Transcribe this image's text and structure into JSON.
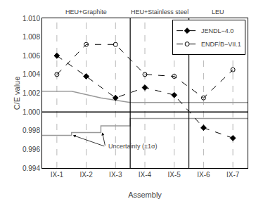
{
  "chart_data": {
    "type": "line",
    "xlabel": "Assembly",
    "ylabel": "C/E value",
    "xlim": [
      0.5,
      7.5
    ],
    "xticks": [
      {
        "value": 1,
        "label": "IX-1"
      },
      {
        "value": 2,
        "label": "IX-2"
      },
      {
        "value": 3,
        "label": "IX-3"
      },
      {
        "value": 4,
        "label": "IX-4"
      },
      {
        "value": 5,
        "label": "IX-5"
      },
      {
        "value": 6,
        "label": "IX-6"
      },
      {
        "value": 7,
        "label": "IX-7"
      }
    ],
    "ylim": [
      0.994,
      1.01
    ],
    "yticks": [
      0.994,
      0.996,
      0.998,
      {
        "value": 1.0,
        "label": "1.000"
      },
      1.002,
      1.004,
      1.006,
      1.008,
      {
        "value": 1.01,
        "label": "1.010"
      }
    ],
    "grid": false,
    "legend": "upper right",
    "background_color": "#ffffff",
    "series": [
      {
        "name": "JENDL−4.0",
        "color": "#000000",
        "marker": "diamond",
        "line_style": "dashed",
        "x": [
          1,
          2,
          3,
          4,
          5,
          6,
          7
        ],
        "values": [
          1.006,
          1.0038,
          1.0015,
          1.0026,
          1.0018,
          0.9983,
          0.9972
        ]
      },
      {
        "name": "ENDF/B−VII.1",
        "color": "#000000",
        "marker": "circle-open",
        "line_style": "dashed",
        "x": [
          1,
          2,
          3,
          4,
          5,
          6,
          7
        ],
        "values": [
          1.004,
          1.0072,
          1.0072,
          1.004,
          1.0038,
          1.0015,
          1.0045
        ]
      }
    ],
    "uncertainty": {
      "color": "#999999",
      "x": [
        0.5,
        1.5,
        1.5,
        2.5,
        2.5,
        3.5,
        3.5,
        5.5,
        5.5,
        7.5
      ],
      "upper": [
        1.0022,
        1.0022,
        1.0022,
        1.0015,
        1.0015,
        1.001,
        1.001,
        1.001,
        1.001,
        1.001
      ],
      "lower": [
        0.9975,
        0.9975,
        0.9978,
        0.9978,
        0.9985,
        0.9985,
        0.9993,
        0.9993,
        0.9993,
        0.9993
      ]
    },
    "reference_line_y": 1.0,
    "dashed_verticals": [
      1,
      2,
      3,
      4,
      5,
      6,
      7
    ],
    "group_dividers": [
      3.5,
      5.5
    ],
    "group_labels": [
      {
        "x": 2.0,
        "label": "HEU+Graphite"
      },
      {
        "x": 4.5,
        "label": "HEU+Stainless steel"
      },
      {
        "x": 6.5,
        "label": "LEU"
      }
    ],
    "annotations": [
      {
        "text": "Uncertainty (±1σ)",
        "x": 2.65,
        "y": 0.9963,
        "arrows_to": [
          [
            2.55,
            0.9978
          ],
          [
            1.55,
            0.9975
          ]
        ]
      }
    ]
  }
}
